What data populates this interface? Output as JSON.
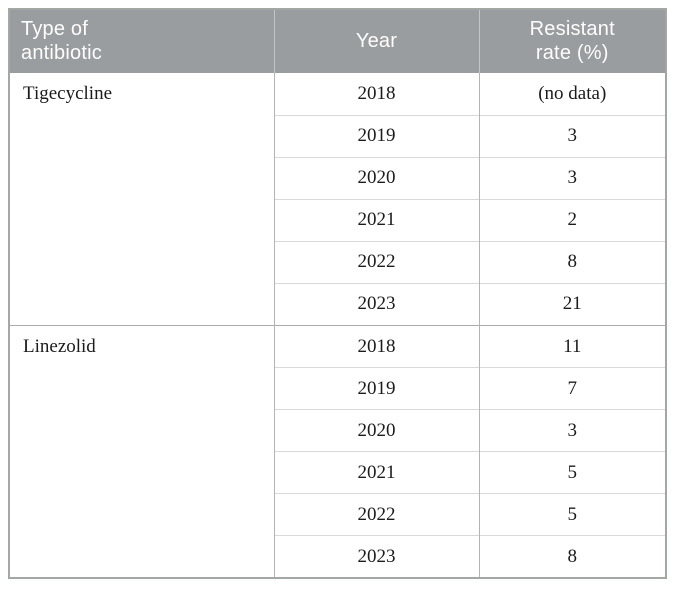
{
  "table": {
    "headers": {
      "col1": "Type of antibiotic",
      "col2": "Year",
      "col3": "Resistant rate (%)"
    },
    "sections": [
      {
        "antibiotic": "Tigecycline",
        "rows": [
          {
            "year": "2018",
            "rate": "(no data)"
          },
          {
            "year": "2019",
            "rate": "3"
          },
          {
            "year": "2020",
            "rate": "3"
          },
          {
            "year": "2021",
            "rate": "2"
          },
          {
            "year": "2022",
            "rate": "8"
          },
          {
            "year": "2023",
            "rate": "21"
          }
        ]
      },
      {
        "antibiotic": "Linezolid",
        "rows": [
          {
            "year": "2018",
            "rate": "11"
          },
          {
            "year": "2019",
            "rate": "7"
          },
          {
            "year": "2020",
            "rate": "3"
          },
          {
            "year": "2021",
            "rate": "5"
          },
          {
            "year": "2022",
            "rate": "5"
          },
          {
            "year": "2023",
            "rate": "8"
          }
        ]
      }
    ]
  },
  "chart_data": {
    "type": "table",
    "title": "",
    "columns": [
      "Type of antibiotic",
      "Year",
      "Resistant rate (%)"
    ],
    "categories": [
      2018,
      2019,
      2020,
      2021,
      2022,
      2023
    ],
    "series": [
      {
        "name": "Tigecycline",
        "values": [
          null,
          3,
          3,
          2,
          8,
          21
        ]
      },
      {
        "name": "Linezolid",
        "values": [
          11,
          7,
          3,
          5,
          5,
          8
        ]
      }
    ],
    "notes": "Tigecycline 2018 shown as (no data)"
  },
  "colors": {
    "header_bg": "#9a9da0",
    "header_text": "#fdfdfd",
    "header_divider": "#c3c5c7",
    "outer_border": "#a4a8a5",
    "column_divider": "#b2b4b6",
    "row_divider": "#d8d9da",
    "section_divider": "#aaacae",
    "body_text": "#1b1b1b",
    "page_bg": "#ffffff"
  }
}
